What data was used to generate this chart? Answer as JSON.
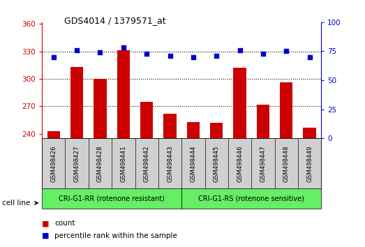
{
  "title": "GDS4014 / 1379571_at",
  "categories": [
    "GSM498426",
    "GSM498427",
    "GSM498428",
    "GSM498441",
    "GSM498442",
    "GSM498443",
    "GSM498444",
    "GSM498445",
    "GSM498446",
    "GSM498447",
    "GSM498448",
    "GSM498449"
  ],
  "bar_values": [
    243,
    313,
    300,
    331,
    275,
    262,
    253,
    252,
    312,
    272,
    296,
    247
  ],
  "percentile_values": [
    70,
    76,
    74,
    78,
    73,
    71,
    70,
    71,
    76,
    73,
    75,
    70
  ],
  "bar_color": "#cc0000",
  "dot_color": "#0000cc",
  "ylim_left": [
    235,
    362
  ],
  "ylim_right": [
    0,
    100
  ],
  "yticks_left": [
    240,
    270,
    300,
    330,
    360
  ],
  "yticks_right": [
    0,
    25,
    50,
    75,
    100
  ],
  "group1_label": "CRI-G1-RR (rotenone resistant)",
  "group2_label": "CRI-G1-RS (rotenone sensitive)",
  "group1_count": 6,
  "group2_count": 6,
  "group_bg_color": "#66ee66",
  "tick_area_color": "#d0d0d0",
  "legend_count_label": "count",
  "legend_percentile_label": "percentile rank within the sample",
  "cell_line_label": "cell line",
  "bar_width": 0.55,
  "background_color": "#ffffff",
  "plot_bg_color": "#ffffff",
  "grid_color": "#000000",
  "dotted_lines": [
    270,
    300,
    330
  ],
  "right_ytick_color": "#0000cc",
  "left_ytick_color": "#cc0000"
}
